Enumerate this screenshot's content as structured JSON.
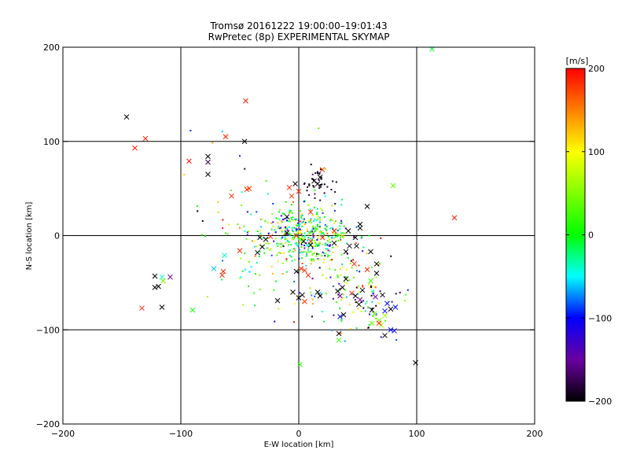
{
  "chart_data": {
    "type": "scatter",
    "title": "Tromsø 20161222 19:00:00–19:01:43",
    "subtitle": "RwPretec (8p) EXPERIMENTAL SKYMAP",
    "xlabel": "E-W location [km]",
    "ylabel": "N-S location [km]",
    "xlim": [
      -200,
      200
    ],
    "ylim": [
      -200,
      200
    ],
    "xticks": [
      -200,
      -100,
      0,
      100,
      200
    ],
    "yticks": [
      -200,
      -100,
      0,
      100,
      200
    ],
    "grid": true,
    "colorbar": {
      "label": "[m/s]",
      "range": [
        -200,
        200
      ],
      "ticks": [
        200,
        100,
        0,
        -100,
        -200
      ],
      "stops": [
        {
          "v": -200,
          "color": "#000000"
        },
        {
          "v": -150,
          "color": "#6a00a0"
        },
        {
          "v": -100,
          "color": "#0000ff"
        },
        {
          "v": -50,
          "color": "#00ffff"
        },
        {
          "v": 0,
          "color": "#00ff00"
        },
        {
          "v": 100,
          "color": "#ffff00"
        },
        {
          "v": 200,
          "color": "#ff0000"
        }
      ]
    },
    "crosses": [
      {
        "x": -146,
        "y": 126,
        "v": -200
      },
      {
        "x": -139,
        "y": 93,
        "v": 190
      },
      {
        "x": -130,
        "y": 103,
        "v": 185
      },
      {
        "x": -93,
        "y": 79,
        "v": 190
      },
      {
        "x": -77,
        "y": 84,
        "v": -200
      },
      {
        "x": -77,
        "y": 78,
        "v": -180
      },
      {
        "x": -62,
        "y": 105,
        "v": 190
      },
      {
        "x": -45,
        "y": 143,
        "v": 190
      },
      {
        "x": -46,
        "y": 100,
        "v": -200
      },
      {
        "x": -44,
        "y": 49,
        "v": 185
      },
      {
        "x": -42,
        "y": 50,
        "v": 180
      },
      {
        "x": -57,
        "y": 42,
        "v": 185
      },
      {
        "x": -77,
        "y": 65,
        "v": -200
      },
      {
        "x": 113,
        "y": 198,
        "v": -10
      },
      {
        "x": 132,
        "y": 19,
        "v": 190
      },
      {
        "x": 80,
        "y": 53,
        "v": 40
      },
      {
        "x": 20,
        "y": 70,
        "v": 185
      },
      {
        "x": 13,
        "y": 58,
        "v": -200
      },
      {
        "x": 16,
        "y": 55,
        "v": -190
      },
      {
        "x": 18,
        "y": 62,
        "v": -200
      },
      {
        "x": -3,
        "y": 55,
        "v": -200
      },
      {
        "x": -8,
        "y": 51,
        "v": 185
      },
      {
        "x": 0,
        "y": 47,
        "v": 185
      },
      {
        "x": -6,
        "y": 42,
        "v": 180
      },
      {
        "x": 10,
        "y": 25,
        "v": 185
      },
      {
        "x": 58,
        "y": 31,
        "v": -200
      },
      {
        "x": 52,
        "y": 8,
        "v": -200
      },
      {
        "x": 42,
        "y": 5,
        "v": -200
      },
      {
        "x": 48,
        "y": -2,
        "v": -200
      },
      {
        "x": 61,
        "y": -17,
        "v": -200
      },
      {
        "x": 49,
        "y": -11,
        "v": -200
      },
      {
        "x": 40,
        "y": -17,
        "v": -200
      },
      {
        "x": 43,
        "y": -11,
        "v": -190
      },
      {
        "x": -65,
        "y": -42,
        "v": 185
      },
      {
        "x": -64,
        "y": -38,
        "v": 185
      },
      {
        "x": -72,
        "y": -35,
        "v": -60
      },
      {
        "x": -109,
        "y": -44,
        "v": -160
      },
      {
        "x": -116,
        "y": -44,
        "v": -40
      },
      {
        "x": -122,
        "y": -43,
        "v": -200
      },
      {
        "x": -115,
        "y": -48,
        "v": 40
      },
      {
        "x": -119,
        "y": -54,
        "v": -200
      },
      {
        "x": -122,
        "y": -55,
        "v": -200
      },
      {
        "x": -116,
        "y": -76,
        "v": -200
      },
      {
        "x": -133,
        "y": -77,
        "v": 185
      },
      {
        "x": -90,
        "y": -79,
        "v": 10
      },
      {
        "x": -63,
        "y": -21,
        "v": -40
      },
      {
        "x": -50,
        "y": -16,
        "v": 185
      },
      {
        "x": -33,
        "y": -2,
        "v": -200
      },
      {
        "x": -35,
        "y": -18,
        "v": -200
      },
      {
        "x": -31,
        "y": -12,
        "v": -200
      },
      {
        "x": -28,
        "y": -4,
        "v": -200
      },
      {
        "x": -24,
        "y": -1,
        "v": 185
      },
      {
        "x": -10,
        "y": 3,
        "v": -200
      },
      {
        "x": -10,
        "y": 20,
        "v": -200
      },
      {
        "x": -2,
        "y": 0,
        "v": 185
      },
      {
        "x": 4,
        "y": -6,
        "v": -200
      },
      {
        "x": 10,
        "y": -6,
        "v": 185
      },
      {
        "x": 10,
        "y": -10,
        "v": -200
      },
      {
        "x": 2,
        "y": -35,
        "v": 185
      },
      {
        "x": 5,
        "y": -37,
        "v": 185
      },
      {
        "x": 8,
        "y": -42,
        "v": 185
      },
      {
        "x": -2,
        "y": -38,
        "v": -200
      },
      {
        "x": -5,
        "y": -60,
        "v": -200
      },
      {
        "x": 0,
        "y": -66,
        "v": -200
      },
      {
        "x": 3,
        "y": -63,
        "v": -200
      },
      {
        "x": 5,
        "y": -70,
        "v": 185
      },
      {
        "x": -18,
        "y": -69,
        "v": -200
      },
      {
        "x": 18,
        "y": -64,
        "v": -200
      },
      {
        "x": 16,
        "y": -60,
        "v": -200
      },
      {
        "x": 37,
        "y": -55,
        "v": -200
      },
      {
        "x": 33,
        "y": -59,
        "v": -200
      },
      {
        "x": 35,
        "y": -64,
        "v": -160
      },
      {
        "x": 45,
        "y": -61,
        "v": 185
      },
      {
        "x": 52,
        "y": -68,
        "v": -150
      },
      {
        "x": 51,
        "y": -73,
        "v": -200
      },
      {
        "x": 48,
        "y": -64,
        "v": -200
      },
      {
        "x": 40,
        "y": -46,
        "v": -200
      },
      {
        "x": 54,
        "y": -58,
        "v": -200
      },
      {
        "x": 65,
        "y": -65,
        "v": -150
      },
      {
        "x": 62,
        "y": -79,
        "v": -200
      },
      {
        "x": 64,
        "y": -83,
        "v": 40
      },
      {
        "x": 71,
        "y": -63,
        "v": -200
      },
      {
        "x": 75,
        "y": -72,
        "v": -100
      },
      {
        "x": 78,
        "y": -78,
        "v": -200
      },
      {
        "x": 82,
        "y": -76,
        "v": -100
      },
      {
        "x": 73,
        "y": -80,
        "v": -100
      },
      {
        "x": 68,
        "y": -90,
        "v": 40
      },
      {
        "x": 70,
        "y": -95,
        "v": 60
      },
      {
        "x": 78,
        "y": -100,
        "v": -100
      },
      {
        "x": 81,
        "y": -101,
        "v": -100
      },
      {
        "x": 73,
        "y": -106,
        "v": -200
      },
      {
        "x": 68,
        "y": -93,
        "v": 185
      },
      {
        "x": 62,
        "y": -93,
        "v": 40
      },
      {
        "x": 35,
        "y": -86,
        "v": -100
      },
      {
        "x": 38,
        "y": -84,
        "v": -200
      },
      {
        "x": 34,
        "y": -104,
        "v": -200
      },
      {
        "x": 34,
        "y": -111,
        "v": 20
      },
      {
        "x": 99,
        "y": -135,
        "v": -200
      },
      {
        "x": 1,
        "y": -137,
        "v": 10
      },
      {
        "x": 30,
        "y": -8,
        "v": -200
      },
      {
        "x": 30,
        "y": 5,
        "v": 185
      },
      {
        "x": 20,
        "y": -2,
        "v": 185
      },
      {
        "x": 52,
        "y": 12,
        "v": -200
      },
      {
        "x": 66,
        "y": -30,
        "v": -200
      },
      {
        "x": 66,
        "y": -40,
        "v": -200
      },
      {
        "x": 58,
        "y": -36,
        "v": 185
      },
      {
        "x": 47,
        "y": -30,
        "v": 185
      },
      {
        "x": 61,
        "y": -48,
        "v": 20
      },
      {
        "x": 73,
        "y": -85,
        "v": 60
      }
    ]
  }
}
